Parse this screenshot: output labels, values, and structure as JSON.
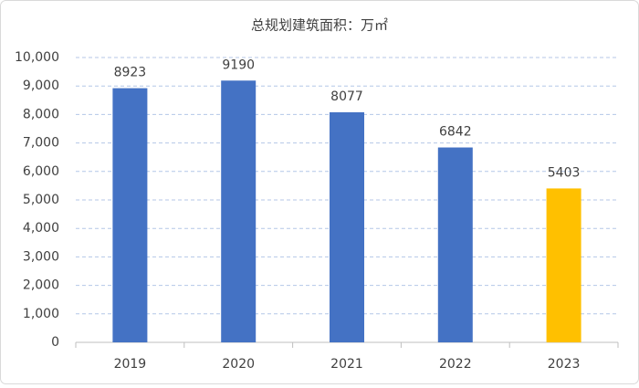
{
  "chart_data": {
    "type": "bar",
    "title": "总规划建筑面积：万㎡",
    "categories": [
      "2019",
      "2020",
      "2021",
      "2022",
      "2023"
    ],
    "values": [
      8923,
      9190,
      8077,
      6842,
      5403
    ],
    "colors": [
      "#4472c4",
      "#4472c4",
      "#4472c4",
      "#4472c4",
      "#ffc000"
    ],
    "ylim": [
      0,
      10000
    ],
    "yticks": [
      0,
      {
        "value": 1000,
        "label": "1,000"
      },
      {
        "value": 2000,
        "label": "2,000"
      },
      {
        "value": 3000,
        "label": "3,000"
      },
      {
        "value": 4000,
        "label": "4,000"
      },
      {
        "value": 5000,
        "label": "5,000"
      },
      {
        "value": 6000,
        "label": "6,000"
      },
      {
        "value": 7000,
        "label": "7,000"
      },
      {
        "value": 8000,
        "label": "8,000"
      },
      {
        "value": 9000,
        "label": "9,000"
      },
      {
        "value": 10000,
        "label": "10,000"
      }
    ],
    "grid": true
  }
}
